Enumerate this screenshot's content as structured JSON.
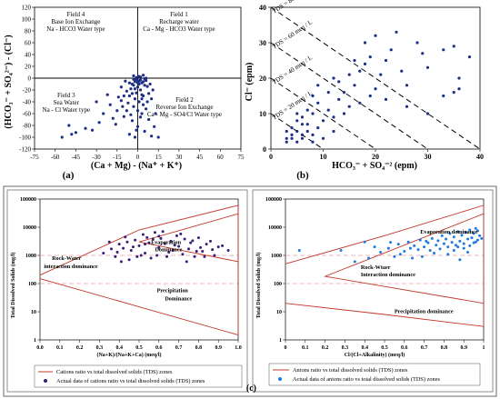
{
  "panel_labels": {
    "a": "(a)",
    "b": "(b)",
    "c": "(c)"
  },
  "chart_data": [
    {
      "type": "scatter",
      "id": "a",
      "xlabel": "(Ca + Mg) - (Na⁺ + K⁺)",
      "ylabel": "(HCO₃⁻ + SO₄²⁻) - (Cl⁻)",
      "xlim": [
        -75,
        75
      ],
      "ylim": [
        -120,
        120
      ],
      "xticks": [
        -75,
        -60,
        -45,
        -30,
        -15,
        0,
        15,
        30,
        45,
        60,
        75
      ],
      "yticks": [
        -120,
        -100,
        -80,
        -60,
        -40,
        -20,
        0,
        20,
        40,
        60,
        80,
        100,
        120
      ],
      "xtick_labels": [
        "-75",
        "-60",
        "-45",
        "-30",
        "-15",
        "0",
        "15",
        "30",
        "45",
        "60",
        "75"
      ],
      "ytick_labels": [
        "-120",
        "-100",
        "-80",
        "-60",
        "-40",
        "-20",
        "0",
        "20",
        "40",
        "60",
        "80",
        "100",
        "120"
      ],
      "fields": [
        {
          "l1": "Field 4",
          "l2": "Base Ion Exchange",
          "l3": "Na - HCO3 Water type"
        },
        {
          "l1": "Field 1",
          "l2": "Recharge water",
          "l3": "Ca - Mg - HCO3 Water type"
        },
        {
          "l1": "Field 3",
          "l2": "Sea Water",
          "l3": "Na - Cl Water type"
        },
        {
          "l1": "Field 2",
          "l2": "Reverse Ion Exchange",
          "l3": "Ca - Mg - SO4/Cl Water type"
        }
      ],
      "points": [
        [
          -1,
          -2
        ],
        [
          0,
          -4
        ],
        [
          1,
          -5
        ],
        [
          -2,
          -6
        ],
        [
          2,
          -3
        ],
        [
          3,
          -8
        ],
        [
          -3,
          -2
        ],
        [
          4,
          -6
        ],
        [
          -4,
          -10
        ],
        [
          5,
          -12
        ],
        [
          6,
          -4
        ],
        [
          -6,
          -8
        ],
        [
          0,
          -15
        ],
        [
          2,
          -20
        ],
        [
          -1,
          -25
        ],
        [
          3,
          -28
        ],
        [
          -5,
          -18
        ],
        [
          -8,
          -22
        ],
        [
          -10,
          -30
        ],
        [
          7,
          -14
        ],
        [
          8,
          -26
        ],
        [
          -2,
          -35
        ],
        [
          1,
          -40
        ],
        [
          4,
          -45
        ],
        [
          -3,
          -48
        ],
        [
          6,
          -52
        ],
        [
          -7,
          -42
        ],
        [
          -12,
          -38
        ],
        [
          -15,
          -55
        ],
        [
          10,
          -35
        ],
        [
          -20,
          -45
        ],
        [
          -25,
          -60
        ],
        [
          -28,
          -75
        ],
        [
          -33,
          -88
        ],
        [
          -38,
          -85
        ],
        [
          -45,
          -92
        ],
        [
          -48,
          -95
        ],
        [
          -50,
          -80
        ],
        [
          -55,
          -100
        ],
        [
          -18,
          -68
        ],
        [
          -10,
          -65
        ],
        [
          -4,
          -72
        ],
        [
          0,
          -82
        ],
        [
          5,
          -90
        ],
        [
          -6,
          -95
        ],
        [
          -2,
          -100
        ],
        [
          10,
          -98
        ],
        [
          12,
          -82
        ],
        [
          15,
          -100
        ],
        [
          8,
          -70
        ],
        [
          3,
          -60
        ],
        [
          -8,
          -55
        ],
        [
          -14,
          -32
        ],
        [
          -22,
          -28
        ],
        [
          -30,
          -40
        ],
        [
          -12,
          -15
        ],
        [
          -6,
          -30
        ],
        [
          -3,
          -12
        ],
        [
          0,
          -8
        ],
        [
          2,
          2
        ],
        [
          4,
          5
        ],
        [
          -1,
          1
        ],
        [
          5,
          -1
        ],
        [
          1,
          3
        ],
        [
          -3,
          4
        ],
        [
          6,
          0
        ],
        [
          9,
          -10
        ],
        [
          -9,
          -5
        ],
        [
          11,
          -20
        ],
        [
          -11,
          -48
        ],
        [
          13,
          -60
        ],
        [
          -16,
          -78
        ],
        [
          0,
          -55
        ],
        [
          2,
          -66
        ],
        [
          -1,
          -88
        ],
        [
          7,
          -40
        ],
        [
          -5,
          -62
        ],
        [
          3,
          -35
        ],
        [
          -2,
          -18
        ],
        [
          1,
          -10
        ],
        [
          -4,
          -26
        ],
        [
          4,
          -30
        ]
      ],
      "point_color": "#1e2f86"
    },
    {
      "type": "scatter",
      "id": "b",
      "xlabel": "HCO₃⁻ + SO₄⁻² (epm)",
      "ylabel": "Cl⁻ (epm)",
      "xlim": [
        0,
        40
      ],
      "ylim": [
        0,
        40
      ],
      "xticks": [
        0,
        10,
        20,
        30,
        40
      ],
      "yticks": [
        0,
        10,
        20,
        30,
        40
      ],
      "xtick_labels": [
        "0",
        "10",
        "20",
        "30",
        "40"
      ],
      "ytick_labels": [
        "0",
        "10",
        "20",
        "30",
        "40"
      ],
      "tds_lines": [
        {
          "label": "TDS = 80 meq / L",
          "c": 40
        },
        {
          "label": "TDS = 60 meq / L",
          "c": 30
        },
        {
          "label": "TDS = 40 meq / L",
          "c": 20
        },
        {
          "label": "TDS = 20 meq / L",
          "c": 10
        }
      ],
      "points": [
        [
          3,
          2
        ],
        [
          4,
          3
        ],
        [
          5,
          2
        ],
        [
          6,
          4
        ],
        [
          3,
          5
        ],
        [
          4,
          6
        ],
        [
          5,
          5
        ],
        [
          6,
          3
        ],
        [
          7,
          5
        ],
        [
          8,
          4
        ],
        [
          5,
          8
        ],
        [
          6,
          9
        ],
        [
          7,
          7
        ],
        [
          8,
          10
        ],
        [
          9,
          6
        ],
        [
          10,
          8
        ],
        [
          11,
          11
        ],
        [
          12,
          9
        ],
        [
          13,
          14
        ],
        [
          12,
          20
        ],
        [
          14,
          16
        ],
        [
          15,
          12
        ],
        [
          16,
          18
        ],
        [
          17,
          22
        ],
        [
          18,
          24
        ],
        [
          19,
          15
        ],
        [
          20,
          17
        ],
        [
          21,
          21
        ],
        [
          22,
          25
        ],
        [
          23,
          28
        ],
        [
          25,
          22
        ],
        [
          26,
          18
        ],
        [
          28,
          30
        ],
        [
          29,
          27
        ],
        [
          30,
          23
        ],
        [
          33,
          28
        ],
        [
          35,
          29
        ],
        [
          36,
          20
        ],
        [
          38,
          26
        ],
        [
          35,
          16
        ],
        [
          36,
          17
        ],
        [
          24,
          33
        ],
        [
          20,
          32
        ],
        [
          19,
          26
        ],
        [
          22,
          14
        ],
        [
          26,
          12
        ],
        [
          30,
          10
        ],
        [
          33,
          15
        ],
        [
          9,
          13
        ],
        [
          11,
          16
        ],
        [
          13,
          19
        ],
        [
          15,
          21
        ],
        [
          8,
          2
        ],
        [
          10,
          3
        ],
        [
          12,
          5
        ],
        [
          6,
          7
        ],
        [
          7,
          11
        ],
        [
          5,
          10
        ],
        [
          4,
          4
        ],
        [
          3,
          3
        ],
        [
          9,
          18
        ],
        [
          16,
          25
        ],
        [
          18,
          30
        ],
        [
          14,
          10
        ],
        [
          17,
          13
        ],
        [
          8,
          15
        ]
      ],
      "point_color": "#1e2f86"
    },
    {
      "type": "scatter",
      "id": "gibbs-cations",
      "xlabel": "(Na+K)/(Na+K+Ca) (meq/l)",
      "ylabel": "Total Dissolved Solids (mg/l)",
      "xlim": [
        0,
        1
      ],
      "ylim": [
        1,
        100000
      ],
      "yscale": "log",
      "xticks": [
        0,
        0.1,
        0.2,
        0.3,
        0.4,
        0.5,
        0.6,
        0.7,
        0.8,
        0.9,
        1.0
      ],
      "yticks": [
        1,
        10,
        100,
        1000,
        10000,
        100000
      ],
      "xtick_labels": [
        "0.0",
        "0.1",
        "0.2",
        "0.3",
        "0.4",
        "0.5",
        "0.6",
        "0.7",
        "0.8",
        "0.9",
        "1.0"
      ],
      "ytick_labels": [
        "1",
        "10",
        "100",
        "1000",
        "10000",
        "100000"
      ],
      "zones": {
        "evaporation": "Evaporation Dominance",
        "rock_1": "Rock-Water",
        "rock_2": "interaction dominance",
        "precip_1": "Precipitation",
        "precip_2": "Dominance"
      },
      "boundary": {
        "upper": [
          [
            0,
            200
          ],
          [
            0.5,
            8000
          ],
          [
            1,
            60000
          ]
        ],
        "lower": [
          [
            0,
            150
          ],
          [
            0.5,
            15
          ],
          [
            1,
            1.5
          ]
        ],
        "inner": [
          [
            1,
            30000
          ],
          [
            0.5,
            3000
          ],
          [
            1,
            600
          ]
        ]
      },
      "points": [
        [
          0.32,
          1200
        ],
        [
          0.35,
          3000
        ],
        [
          0.38,
          900
        ],
        [
          0.4,
          2500
        ],
        [
          0.42,
          1800
        ],
        [
          0.43,
          4500
        ],
        [
          0.45,
          700
        ],
        [
          0.46,
          1500
        ],
        [
          0.48,
          3500
        ],
        [
          0.5,
          2200
        ],
        [
          0.52,
          5500
        ],
        [
          0.53,
          1200
        ],
        [
          0.55,
          2800
        ],
        [
          0.56,
          800
        ],
        [
          0.58,
          6500
        ],
        [
          0.6,
          1900
        ],
        [
          0.61,
          4000
        ],
        [
          0.63,
          2600
        ],
        [
          0.64,
          900
        ],
        [
          0.66,
          3200
        ],
        [
          0.67,
          1500
        ],
        [
          0.69,
          5000
        ],
        [
          0.7,
          2100
        ],
        [
          0.72,
          1100
        ],
        [
          0.73,
          3800
        ],
        [
          0.75,
          1700
        ],
        [
          0.76,
          2800
        ],
        [
          0.78,
          900
        ],
        [
          0.8,
          4200
        ],
        [
          0.82,
          1400
        ],
        [
          0.84,
          2500
        ],
        [
          0.86,
          3200
        ],
        [
          0.88,
          1000
        ],
        [
          0.9,
          2000
        ],
        [
          0.95,
          1500
        ],
        [
          0.41,
          600
        ],
        [
          0.47,
          2000
        ],
        [
          0.51,
          1000
        ],
        [
          0.57,
          3800
        ],
        [
          0.62,
          7000
        ],
        [
          0.65,
          1300
        ],
        [
          0.68,
          2300
        ],
        [
          0.74,
          600
        ],
        [
          0.77,
          3300
        ],
        [
          0.81,
          1900
        ],
        [
          0.36,
          1700
        ],
        [
          0.44,
          3000
        ],
        [
          0.54,
          4300
        ],
        [
          0.59,
          1000
        ],
        [
          0.71,
          5800
        ],
        [
          0.79,
          1400
        ],
        [
          0.49,
          900
        ],
        [
          0.53,
          2500
        ],
        [
          0.39,
          1300
        ],
        [
          0.6,
          4800
        ],
        [
          0.83,
          900
        ],
        [
          0.87,
          1600
        ],
        [
          0.92,
          2200
        ]
      ],
      "point_color": "#3a1d7a",
      "legend": [
        {
          "kind": "line",
          "label": "Cations ratio vs total dissolved solids (TDS) zones"
        },
        {
          "kind": "dot",
          "label": "Actual data of cations ratio vs total dissolved solids (TDS) zones"
        }
      ]
    },
    {
      "type": "scatter",
      "id": "gibbs-anions",
      "xlabel": "Cl/(Cl+Alkalinity) (meq/l)",
      "ylabel": "Total Dissolved Solids (mg/l)",
      "xlim": [
        0,
        1
      ],
      "ylim": [
        1,
        100000
      ],
      "yscale": "log",
      "xticks": [
        0,
        0.1,
        0.2,
        0.3,
        0.4,
        0.5,
        0.6,
        0.7,
        0.8,
        0.9,
        1.0
      ],
      "yticks": [
        1,
        10,
        100,
        1000,
        10000,
        100000
      ],
      "xtick_labels": [
        "0",
        "0.1",
        "0.2",
        "0.3",
        "0.4",
        "0.5",
        "0.6",
        "0.7",
        "0.8",
        "0.9",
        "1"
      ],
      "ytick_labels": [
        "1",
        "10",
        "100",
        "1000",
        "10000",
        "100000"
      ],
      "zones": {
        "evaporation": "Evaporation dominance",
        "rock_1": "Rock-Wtaer",
        "rock_2": "Interaction dominance",
        "precip_1": "Precipitation dominance",
        "precip_2": ""
      },
      "boundary": {
        "upper": [
          [
            0,
            500
          ],
          [
            0.5,
            5000
          ],
          [
            1,
            60000
          ]
        ],
        "lower": [
          [
            0,
            20
          ],
          [
            0.5,
            8
          ],
          [
            1,
            3
          ]
        ],
        "inner": [
          [
            1,
            30000
          ],
          [
            0.2,
            180
          ],
          [
            1,
            20
          ]
        ]
      },
      "points": [
        [
          0.07,
          1500
        ],
        [
          0.28,
          1500
        ],
        [
          0.35,
          600
        ],
        [
          0.4,
          3000
        ],
        [
          0.42,
          800
        ],
        [
          0.45,
          2000
        ],
        [
          0.48,
          1300
        ],
        [
          0.52,
          1800
        ],
        [
          0.55,
          900
        ],
        [
          0.57,
          2500
        ],
        [
          0.6,
          1400
        ],
        [
          0.62,
          3000
        ],
        [
          0.63,
          1800
        ],
        [
          0.65,
          2200
        ],
        [
          0.67,
          1600
        ],
        [
          0.68,
          3500
        ],
        [
          0.7,
          2000
        ],
        [
          0.72,
          2800
        ],
        [
          0.73,
          1500
        ],
        [
          0.74,
          4000
        ],
        [
          0.76,
          2300
        ],
        [
          0.77,
          3300
        ],
        [
          0.78,
          1700
        ],
        [
          0.79,
          5000
        ],
        [
          0.8,
          2600
        ],
        [
          0.81,
          3800
        ],
        [
          0.82,
          2000
        ],
        [
          0.83,
          6000
        ],
        [
          0.84,
          2900
        ],
        [
          0.85,
          4500
        ],
        [
          0.86,
          2300
        ],
        [
          0.87,
          7000
        ],
        [
          0.88,
          3200
        ],
        [
          0.89,
          5200
        ],
        [
          0.9,
          2600
        ],
        [
          0.91,
          6500
        ],
        [
          0.92,
          3800
        ],
        [
          0.93,
          8000
        ],
        [
          0.94,
          4200
        ],
        [
          0.95,
          6000
        ],
        [
          0.96,
          3000
        ],
        [
          0.97,
          7500
        ],
        [
          0.98,
          5000
        ],
        [
          0.99,
          4000
        ],
        [
          0.75,
          1200
        ],
        [
          0.69,
          900
        ],
        [
          0.58,
          1100
        ],
        [
          0.85,
          1500
        ],
        [
          0.9,
          1800
        ],
        [
          0.93,
          2200
        ],
        [
          0.95,
          2800
        ],
        [
          0.96,
          9000
        ],
        [
          0.88,
          700
        ],
        [
          0.71,
          3200
        ],
        [
          0.64,
          800
        ],
        [
          0.53,
          2900
        ],
        [
          0.82,
          1100
        ],
        [
          0.87,
          2000
        ],
        [
          0.97,
          3500
        ],
        [
          0.92,
          1300
        ]
      ],
      "point_color": "#1e7ae0",
      "legend": [
        {
          "kind": "line",
          "label": "Anions ratio vs total dissolved solids (TDS) zones"
        },
        {
          "kind": "dot",
          "label": "Actual data of anions ratio vs total dissolved solids (TDS) zones"
        }
      ]
    }
  ]
}
